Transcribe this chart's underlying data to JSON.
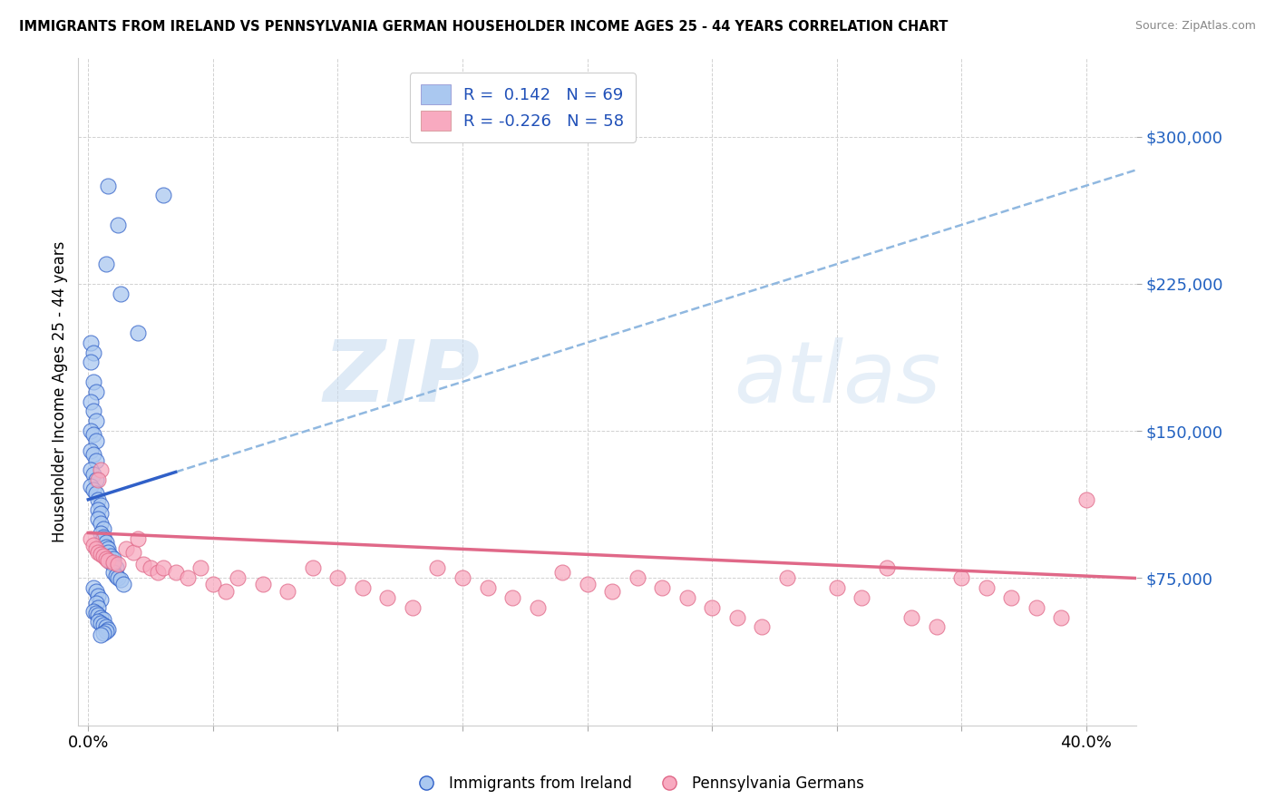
{
  "title": "IMMIGRANTS FROM IRELAND VS PENNSYLVANIA GERMAN HOUSEHOLDER INCOME AGES 25 - 44 YEARS CORRELATION CHART",
  "source": "Source: ZipAtlas.com",
  "ylabel": "Householder Income Ages 25 - 44 years",
  "ytick_labels": [
    "$75,000",
    "$150,000",
    "$225,000",
    "$300,000"
  ],
  "ytick_values": [
    75000,
    150000,
    225000,
    300000
  ],
  "ylim": [
    0,
    340000
  ],
  "xlim": [
    -0.004,
    0.42
  ],
  "legend_label1": "R =  0.142   N = 69",
  "legend_label2": "R = -0.226   N = 58",
  "legend_title1": "Immigrants from Ireland",
  "legend_title2": "Pennsylvania Germans",
  "color_blue": "#aac8f0",
  "color_pink": "#f8aac0",
  "line_blue": "#3060c8",
  "line_pink": "#e06888",
  "line_dashed_color": "#90b8e0",
  "watermark_zip": "ZIP",
  "watermark_atlas": "atlas",
  "R1": 0.142,
  "N1": 69,
  "R2": -0.226,
  "N2": 58,
  "blue_x": [
    0.008,
    0.03,
    0.012,
    0.007,
    0.013,
    0.02,
    0.001,
    0.002,
    0.001,
    0.002,
    0.003,
    0.001,
    0.002,
    0.003,
    0.001,
    0.002,
    0.003,
    0.001,
    0.002,
    0.003,
    0.001,
    0.002,
    0.003,
    0.001,
    0.002,
    0.003,
    0.004,
    0.005,
    0.004,
    0.005,
    0.004,
    0.005,
    0.006,
    0.005,
    0.006,
    0.006,
    0.007,
    0.007,
    0.008,
    0.008,
    0.009,
    0.01,
    0.009,
    0.01,
    0.011,
    0.01,
    0.011,
    0.012,
    0.013,
    0.014,
    0.002,
    0.003,
    0.004,
    0.005,
    0.003,
    0.004,
    0.002,
    0.003,
    0.004,
    0.005,
    0.006,
    0.004,
    0.005,
    0.006,
    0.007,
    0.008,
    0.007,
    0.006,
    0.005
  ],
  "blue_y": [
    275000,
    270000,
    255000,
    235000,
    220000,
    200000,
    195000,
    190000,
    185000,
    175000,
    170000,
    165000,
    160000,
    155000,
    150000,
    148000,
    145000,
    140000,
    138000,
    135000,
    130000,
    128000,
    125000,
    122000,
    120000,
    118000,
    115000,
    112000,
    110000,
    108000,
    105000,
    103000,
    100000,
    98000,
    96000,
    95000,
    93000,
    91000,
    90000,
    88000,
    86000,
    85000,
    83000,
    82000,
    80000,
    78000,
    76000,
    75000,
    74000,
    72000,
    70000,
    68000,
    66000,
    64000,
    62000,
    60000,
    58000,
    57000,
    56000,
    55000,
    54000,
    53000,
    52000,
    51000,
    50000,
    49000,
    48000,
    47000,
    46000
  ],
  "pink_x": [
    0.001,
    0.002,
    0.003,
    0.004,
    0.005,
    0.006,
    0.007,
    0.008,
    0.01,
    0.012,
    0.015,
    0.018,
    0.02,
    0.022,
    0.025,
    0.028,
    0.03,
    0.035,
    0.04,
    0.045,
    0.05,
    0.055,
    0.06,
    0.07,
    0.08,
    0.09,
    0.1,
    0.11,
    0.12,
    0.13,
    0.14,
    0.15,
    0.16,
    0.17,
    0.18,
    0.19,
    0.2,
    0.21,
    0.22,
    0.23,
    0.24,
    0.25,
    0.26,
    0.27,
    0.28,
    0.3,
    0.31,
    0.32,
    0.33,
    0.34,
    0.35,
    0.36,
    0.37,
    0.38,
    0.39,
    0.4,
    0.005,
    0.004
  ],
  "pink_y": [
    95000,
    92000,
    90000,
    88000,
    87000,
    86000,
    85000,
    84000,
    83000,
    82000,
    90000,
    88000,
    95000,
    82000,
    80000,
    78000,
    80000,
    78000,
    75000,
    80000,
    72000,
    68000,
    75000,
    72000,
    68000,
    80000,
    75000,
    70000,
    65000,
    60000,
    80000,
    75000,
    70000,
    65000,
    60000,
    78000,
    72000,
    68000,
    75000,
    70000,
    65000,
    60000,
    55000,
    50000,
    75000,
    70000,
    65000,
    80000,
    55000,
    50000,
    75000,
    70000,
    65000,
    60000,
    55000,
    115000,
    130000,
    125000
  ]
}
